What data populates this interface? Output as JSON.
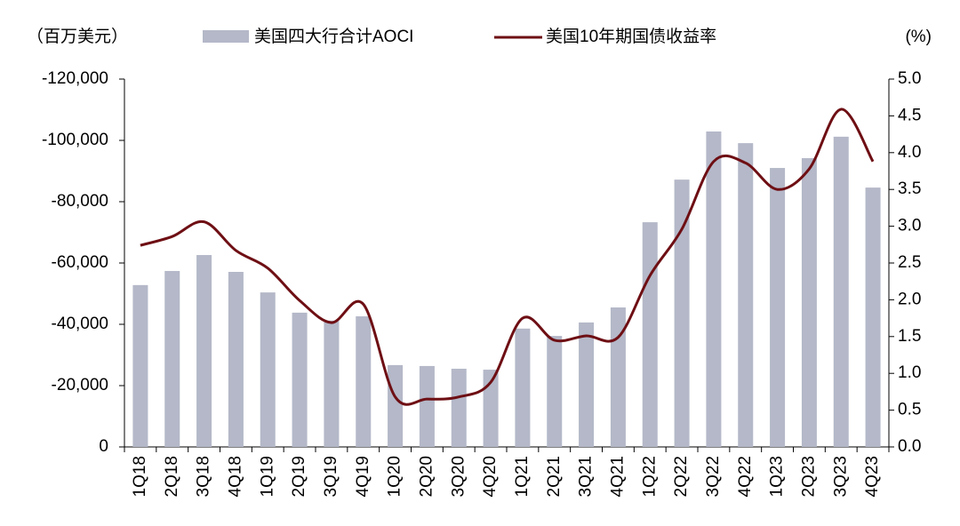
{
  "chart_data": {
    "type": "bar_line",
    "left_unit": "（百万美元）",
    "right_unit": "(%)",
    "categories": [
      "1Q18",
      "2Q18",
      "3Q18",
      "4Q18",
      "1Q19",
      "2Q19",
      "3Q19",
      "4Q19",
      "1Q20",
      "2Q20",
      "3Q20",
      "4Q20",
      "1Q21",
      "2Q21",
      "3Q21",
      "4Q21",
      "1Q22",
      "2Q22",
      "3Q22",
      "4Q22",
      "1Q23",
      "2Q23",
      "3Q23",
      "4Q23"
    ],
    "series": [
      {
        "name": "美国四大行合计AOCI",
        "color": "#b4b8c8",
        "type": "bar",
        "values": [
          -52800,
          -57400,
          -62600,
          -57100,
          -50400,
          -43800,
          -41200,
          -42600,
          -26700,
          -26400,
          -25500,
          -25200,
          -38600,
          -36200,
          -40600,
          -45500,
          -73300,
          -87200,
          -102900,
          -99100,
          -91000,
          -94200,
          -101200,
          -84600
        ]
      },
      {
        "name": "美国10年期国债收益率",
        "color": "#6e0f14",
        "type": "line",
        "axis": "y2",
        "values": [
          2.74,
          2.86,
          3.06,
          2.67,
          2.43,
          1.99,
          1.69,
          1.94,
          0.68,
          0.65,
          0.68,
          0.88,
          1.75,
          1.45,
          1.51,
          1.49,
          2.33,
          2.96,
          3.88,
          3.86,
          3.5,
          3.78,
          4.59,
          3.88
        ]
      }
    ],
    "ylim": [
      0,
      -120000
    ],
    "yticks": [
      0,
      {
        "value": -20000,
        "label": "-20,000"
      },
      {
        "value": -40000,
        "label": "-40,000"
      },
      {
        "value": -60000,
        "label": "-60,000"
      },
      {
        "value": -80000,
        "label": "-80,000"
      },
      {
        "value": -100000,
        "label": "-100,000"
      },
      {
        "value": -120000,
        "label": "-120,000"
      }
    ],
    "y2lim": [
      0,
      5
    ],
    "y2ticks": [
      {
        "value": 0,
        "label": "0.0"
      },
      0.5,
      {
        "value": 1,
        "label": "1.0"
      },
      1.5,
      {
        "value": 2,
        "label": "2.0"
      },
      2.5,
      {
        "value": 3,
        "label": "3.0"
      },
      3.5,
      {
        "value": 4,
        "label": "4.0"
      },
      4.5,
      {
        "value": 5,
        "label": "5.0"
      }
    ]
  }
}
